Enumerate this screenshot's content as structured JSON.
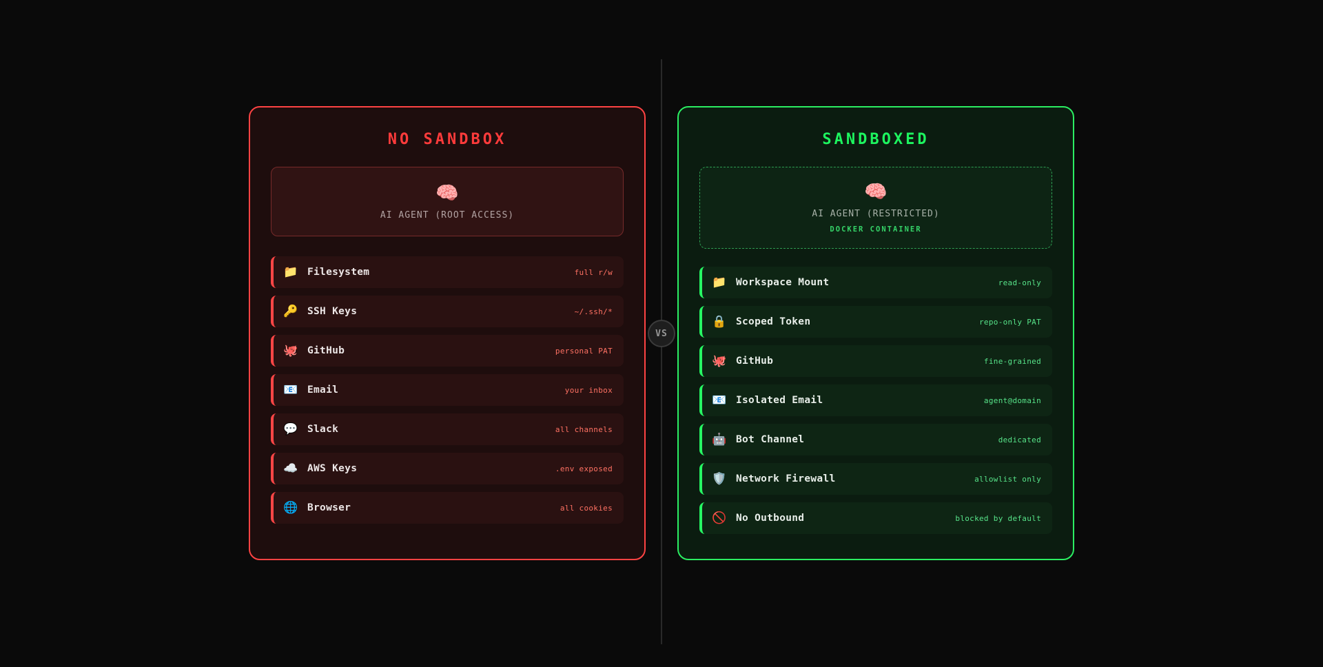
{
  "colors": {
    "page_background": "#0a0a0a",
    "danger_border": "#ff4343",
    "danger_title": "#ff3b3b",
    "danger_row_accent": "#ff4646",
    "danger_value_text": "#ff7163",
    "safe_border": "#2bee62",
    "safe_title": "#1df55f",
    "safe_row_accent": "#26f763",
    "safe_value_text": "#57e389",
    "safe_sublabel": "#35d368",
    "vs_text": "#969696"
  },
  "vs_badge": {
    "label": "VS"
  },
  "panels": {
    "left": {
      "title": "NO SANDBOX",
      "agent": {
        "emoji": "🧠",
        "label": "AI AGENT (ROOT ACCESS)"
      },
      "rows": [
        {
          "icon": "📁",
          "label": "Filesystem",
          "value": "full r/w"
        },
        {
          "icon": "🔑",
          "label": "SSH Keys",
          "value": "~/.ssh/*"
        },
        {
          "icon": "🐙",
          "label": "GitHub",
          "value": "personal PAT"
        },
        {
          "icon": "📧",
          "label": "Email",
          "value": "your inbox"
        },
        {
          "icon": "💬",
          "label": "Slack",
          "value": "all channels"
        },
        {
          "icon": "☁️",
          "label": "AWS Keys",
          "value": ".env exposed"
        },
        {
          "icon": "🌐",
          "label": "Browser",
          "value": "all cookies"
        }
      ]
    },
    "right": {
      "title": "SANDBOXED",
      "agent": {
        "emoji": "🧠",
        "label": "AI AGENT (RESTRICTED)",
        "sublabel": "DOCKER CONTAINER"
      },
      "rows": [
        {
          "icon": "📁",
          "label": "Workspace Mount",
          "value": "read-only"
        },
        {
          "icon": "🔒",
          "label": "Scoped Token",
          "value": "repo-only PAT"
        },
        {
          "icon": "🐙",
          "label": "GitHub",
          "value": "fine-grained"
        },
        {
          "icon": "📧",
          "label": "Isolated Email",
          "value": "agent@domain"
        },
        {
          "icon": "🤖",
          "label": "Bot Channel",
          "value": "dedicated"
        },
        {
          "icon": "🛡️",
          "label": "Network Firewall",
          "value": "allowlist only"
        },
        {
          "icon": "🚫",
          "label": "No Outbound",
          "value": "blocked by default"
        }
      ]
    }
  }
}
